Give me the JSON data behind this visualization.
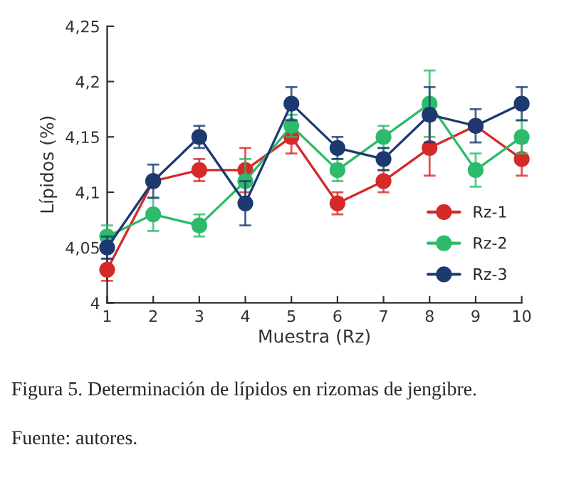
{
  "chart_data": {
    "type": "line",
    "xlabel": "Muestra (Rz)",
    "ylabel": "Lípidos (%)",
    "x": [
      1,
      2,
      3,
      4,
      5,
      6,
      7,
      8,
      9,
      10
    ],
    "xlim": [
      1,
      10
    ],
    "xticks": [
      1,
      2,
      3,
      4,
      5,
      6,
      7,
      8,
      9,
      10
    ],
    "ylim": [
      4,
      4.25
    ],
    "yticks": [
      {
        "value": 4,
        "label": "4"
      },
      {
        "value": 4.05,
        "label": "4,05"
      },
      {
        "value": 4.1,
        "label": "4,1"
      },
      {
        "value": 4.15,
        "label": "4,15"
      },
      {
        "value": 4.2,
        "label": "4,2"
      },
      {
        "value": 4.25,
        "label": "4,25"
      }
    ],
    "series": [
      {
        "name": "Rz-1",
        "color": "#d42a2a",
        "values": [
          4.03,
          4.11,
          4.12,
          4.12,
          4.15,
          4.09,
          4.11,
          4.14,
          4.16,
          4.13
        ],
        "errors": [
          0.01,
          null,
          0.01,
          0.02,
          0.015,
          0.01,
          0.01,
          0.025,
          null,
          0.015
        ]
      },
      {
        "name": "Rz-2",
        "color": "#2dba6a",
        "values": [
          4.06,
          4.08,
          4.07,
          4.11,
          4.16,
          4.12,
          4.15,
          4.18,
          4.12,
          4.15
        ],
        "errors": [
          0.01,
          0.015,
          0.01,
          0.02,
          0.01,
          0.01,
          0.01,
          0.03,
          0.015,
          0.015
        ]
      },
      {
        "name": "Rz-3",
        "color": "#1c3a70",
        "values": [
          4.05,
          4.11,
          4.15,
          4.09,
          4.18,
          4.14,
          4.13,
          4.17,
          4.16,
          4.18
        ],
        "errors": [
          0.01,
          0.015,
          0.01,
          0.02,
          0.015,
          0.01,
          0.01,
          0.025,
          0.015,
          0.015
        ]
      }
    ],
    "marker": "circle",
    "line_style": "solid",
    "grid": false,
    "legend": "bottom right",
    "annotations": [
      "Figura 5. Determinación de lípidos en rizomas de jengibre.",
      "Fuente: autores."
    ]
  }
}
